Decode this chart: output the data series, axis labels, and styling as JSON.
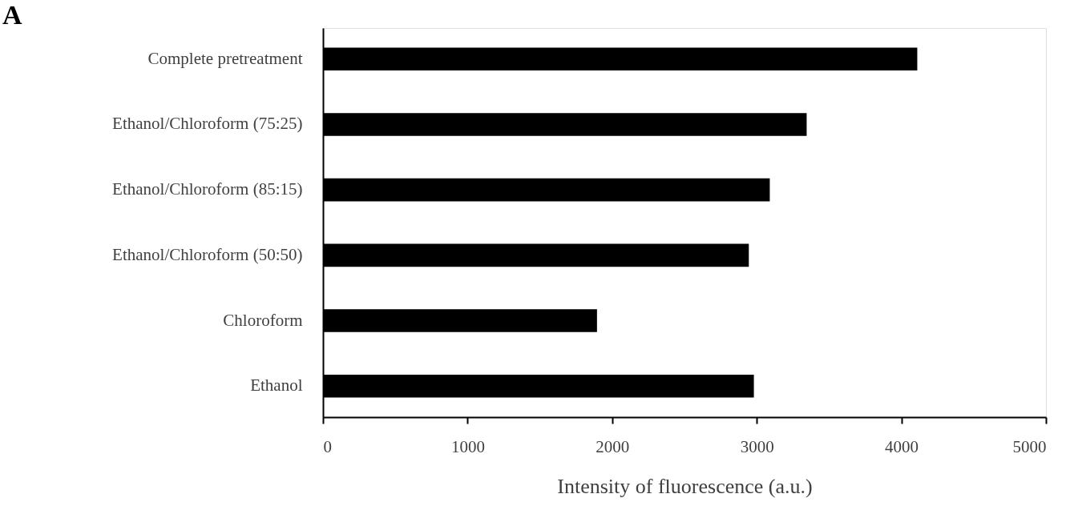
{
  "chart_data": {
    "type": "bar",
    "orientation": "horizontal",
    "xlabel": "Intensity of fluorescence (a.u.)",
    "categories": [
      "Complete pretreatment",
      "Ethanol/Chloroform (75:25)",
      "Ethanol/Chloroform (85:15)",
      "Ethanol/Chloroform (50:50)",
      "Chloroform",
      "Ethanol"
    ],
    "values": [
      4110,
      3345,
      3090,
      2945,
      1895,
      2980
    ],
    "color": "#000000",
    "xlim": [
      0,
      5000
    ],
    "xticks": [
      0,
      1000,
      2000,
      3000,
      4000,
      5000
    ],
    "grid": false,
    "annotations": [
      "A"
    ]
  }
}
